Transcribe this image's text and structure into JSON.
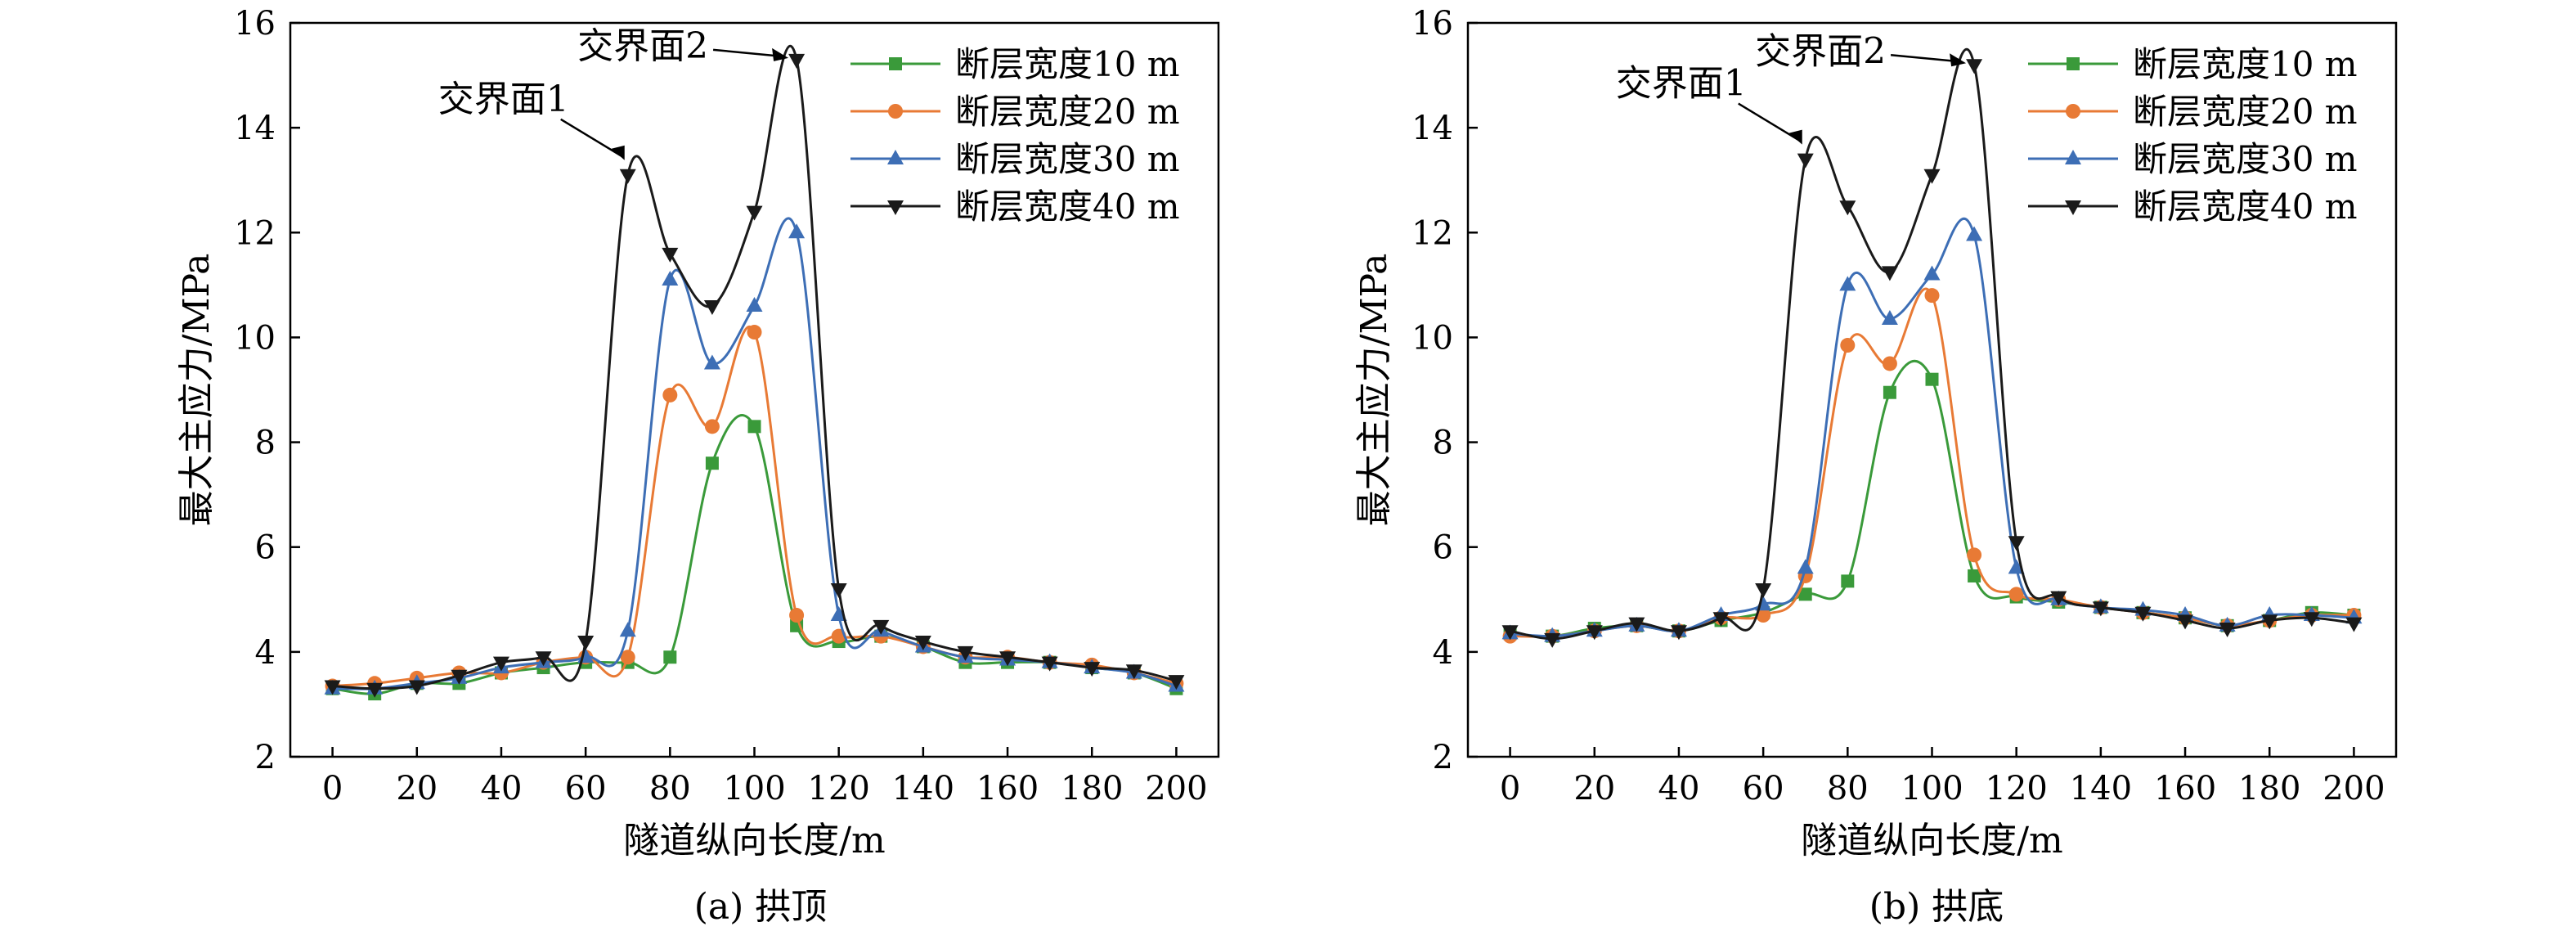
{
  "chart_data": [
    {
      "type": "line",
      "caption": "(a) 拱顶",
      "xlabel": "隧道纵向长度/m",
      "ylabel": "最大主应力/MPa",
      "xlim": [
        -10,
        210
      ],
      "ylim": [
        2,
        16
      ],
      "xticks": [
        0,
        20,
        40,
        60,
        80,
        100,
        120,
        140,
        160,
        180,
        200
      ],
      "yticks": [
        2,
        4,
        6,
        8,
        10,
        12,
        14,
        16
      ],
      "legend_position": "top-right",
      "x": [
        0,
        10,
        20,
        30,
        40,
        50,
        60,
        70,
        80,
        90,
        100,
        110,
        120,
        130,
        140,
        150,
        160,
        170,
        180,
        190,
        200
      ],
      "series": [
        {
          "name": "断层宽度10 m",
          "color": "#3a9a3a",
          "marker": "square",
          "values": [
            3.3,
            3.2,
            3.4,
            3.4,
            3.6,
            3.7,
            3.8,
            3.8,
            3.9,
            7.6,
            8.3,
            4.5,
            4.2,
            4.3,
            4.1,
            3.8,
            3.8,
            3.8,
            3.7,
            3.6,
            3.3
          ]
        },
        {
          "name": "断层宽度20 m",
          "color": "#e87a35",
          "marker": "circle",
          "values": [
            3.35,
            3.4,
            3.5,
            3.6,
            3.6,
            3.8,
            3.9,
            3.9,
            8.9,
            8.3,
            10.1,
            4.7,
            4.3,
            4.3,
            4.1,
            3.9,
            3.9,
            3.8,
            3.75,
            3.6,
            3.4
          ]
        },
        {
          "name": "断层宽度30 m",
          "color": "#3d6eb5",
          "marker": "triangle-up",
          "values": [
            3.3,
            3.3,
            3.4,
            3.5,
            3.7,
            3.8,
            3.9,
            4.4,
            11.1,
            9.5,
            10.6,
            12.0,
            4.7,
            4.4,
            4.1,
            3.9,
            3.85,
            3.8,
            3.7,
            3.6,
            3.35
          ]
        },
        {
          "name": "断层宽度40 m",
          "color": "#1a1a1a",
          "marker": "triangle-down",
          "values": [
            3.35,
            3.3,
            3.35,
            3.55,
            3.8,
            3.9,
            4.2,
            13.1,
            11.6,
            10.6,
            12.4,
            15.3,
            5.2,
            4.5,
            4.2,
            4.0,
            3.9,
            3.8,
            3.7,
            3.65,
            3.45
          ]
        }
      ],
      "annotations": [
        {
          "text": "交界面1",
          "x": 70,
          "y": 13.1
        },
        {
          "text": "交界面2",
          "x": 110,
          "y": 15.3
        }
      ]
    },
    {
      "type": "line",
      "caption": "(b) 拱底",
      "xlabel": "隧道纵向长度/m",
      "ylabel": "最大主应力/MPa",
      "xlim": [
        -10,
        210
      ],
      "ylim": [
        2,
        16
      ],
      "xticks": [
        0,
        20,
        40,
        60,
        80,
        100,
        120,
        140,
        160,
        180,
        200
      ],
      "yticks": [
        2,
        4,
        6,
        8,
        10,
        12,
        14,
        16
      ],
      "legend_position": "top-right",
      "x": [
        0,
        10,
        20,
        30,
        40,
        50,
        60,
        70,
        80,
        90,
        100,
        110,
        120,
        130,
        140,
        150,
        160,
        170,
        180,
        190,
        200
      ],
      "series": [
        {
          "name": "断层宽度10 m",
          "color": "#3a9a3a",
          "marker": "square",
          "values": [
            4.35,
            4.3,
            4.45,
            4.5,
            4.4,
            4.6,
            4.75,
            5.1,
            5.35,
            8.95,
            9.2,
            5.45,
            5.05,
            4.95,
            4.85,
            4.75,
            4.65,
            4.5,
            4.6,
            4.75,
            4.7
          ]
        },
        {
          "name": "断层宽度20 m",
          "color": "#e87a35",
          "marker": "circle",
          "values": [
            4.3,
            4.3,
            4.4,
            4.5,
            4.4,
            4.65,
            4.7,
            5.45,
            9.85,
            9.5,
            10.8,
            5.85,
            5.1,
            5.0,
            4.85,
            4.75,
            4.65,
            4.5,
            4.6,
            4.7,
            4.7
          ]
        },
        {
          "name": "断层宽度30 m",
          "color": "#3d6eb5",
          "marker": "triangle-up",
          "values": [
            4.35,
            4.3,
            4.4,
            4.5,
            4.4,
            4.7,
            4.9,
            5.6,
            11.0,
            10.35,
            11.2,
            11.95,
            5.6,
            5.0,
            4.85,
            4.8,
            4.7,
            4.5,
            4.7,
            4.7,
            4.65
          ]
        },
        {
          "name": "断层宽度40 m",
          "color": "#1a1a1a",
          "marker": "triangle-down",
          "values": [
            4.4,
            4.25,
            4.4,
            4.55,
            4.4,
            4.65,
            5.2,
            13.4,
            12.5,
            11.25,
            13.1,
            15.2,
            6.1,
            5.05,
            4.85,
            4.75,
            4.6,
            4.45,
            4.6,
            4.65,
            4.55
          ]
        }
      ],
      "annotations": [
        {
          "text": "交界面1",
          "x": 70,
          "y": 13.4
        },
        {
          "text": "交界面2",
          "x": 110,
          "y": 15.2
        }
      ]
    }
  ]
}
